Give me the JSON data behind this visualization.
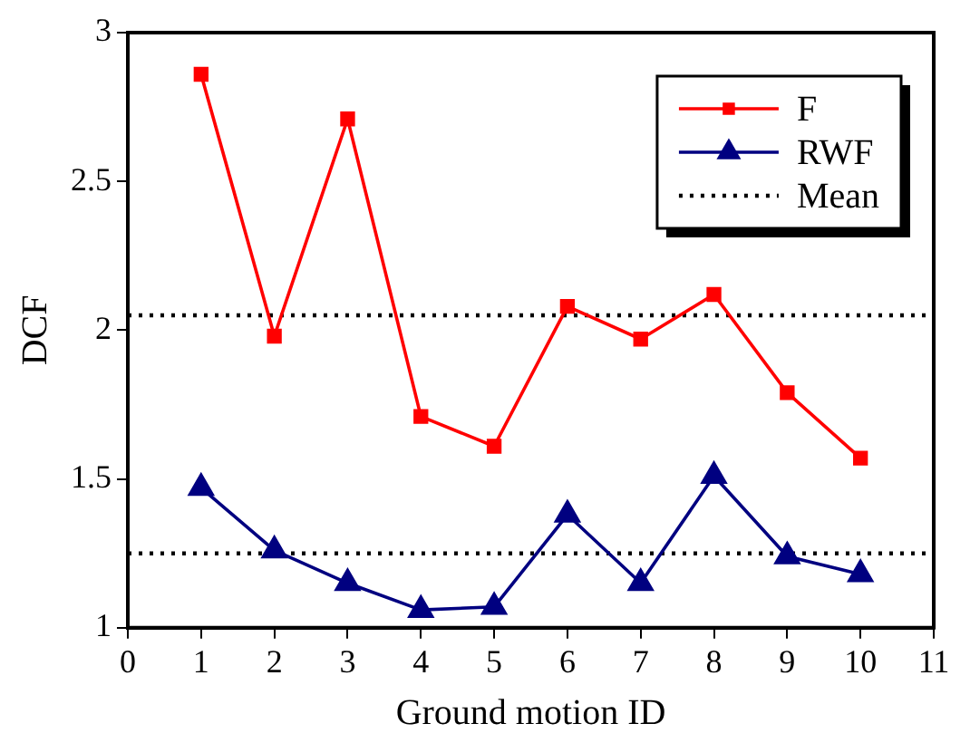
{
  "chart_data": {
    "type": "line",
    "xlabel": "Ground motion ID",
    "ylabel": "DCF",
    "x": [
      1,
      2,
      3,
      4,
      5,
      6,
      7,
      8,
      9,
      10
    ],
    "series": [
      {
        "name": "F",
        "color": "#ff0000",
        "marker": "square",
        "values": [
          2.86,
          1.98,
          2.71,
          1.71,
          1.61,
          2.08,
          1.97,
          2.12,
          1.79,
          1.57
        ]
      },
      {
        "name": "RWF",
        "color": "#000080",
        "marker": "triangle",
        "values": [
          1.47,
          1.26,
          1.15,
          1.06,
          1.07,
          1.38,
          1.15,
          1.51,
          1.24,
          1.18
        ]
      }
    ],
    "xlim": [
      0,
      11
    ],
    "xticks": [
      0,
      1,
      2,
      3,
      4,
      5,
      6,
      7,
      8,
      9,
      10,
      11
    ],
    "ylim": [
      1,
      3
    ],
    "yticks": [
      1,
      1.5,
      2,
      2.5,
      3
    ],
    "ref_lines": [
      {
        "axis": "y",
        "value": 2.05,
        "label": "Mean",
        "color": "#000000",
        "line_style": "dotted"
      },
      {
        "axis": "y",
        "value": 1.25,
        "color": "#000000",
        "line_style": "dotted"
      }
    ],
    "legend": "top right",
    "line_style": "solid"
  }
}
